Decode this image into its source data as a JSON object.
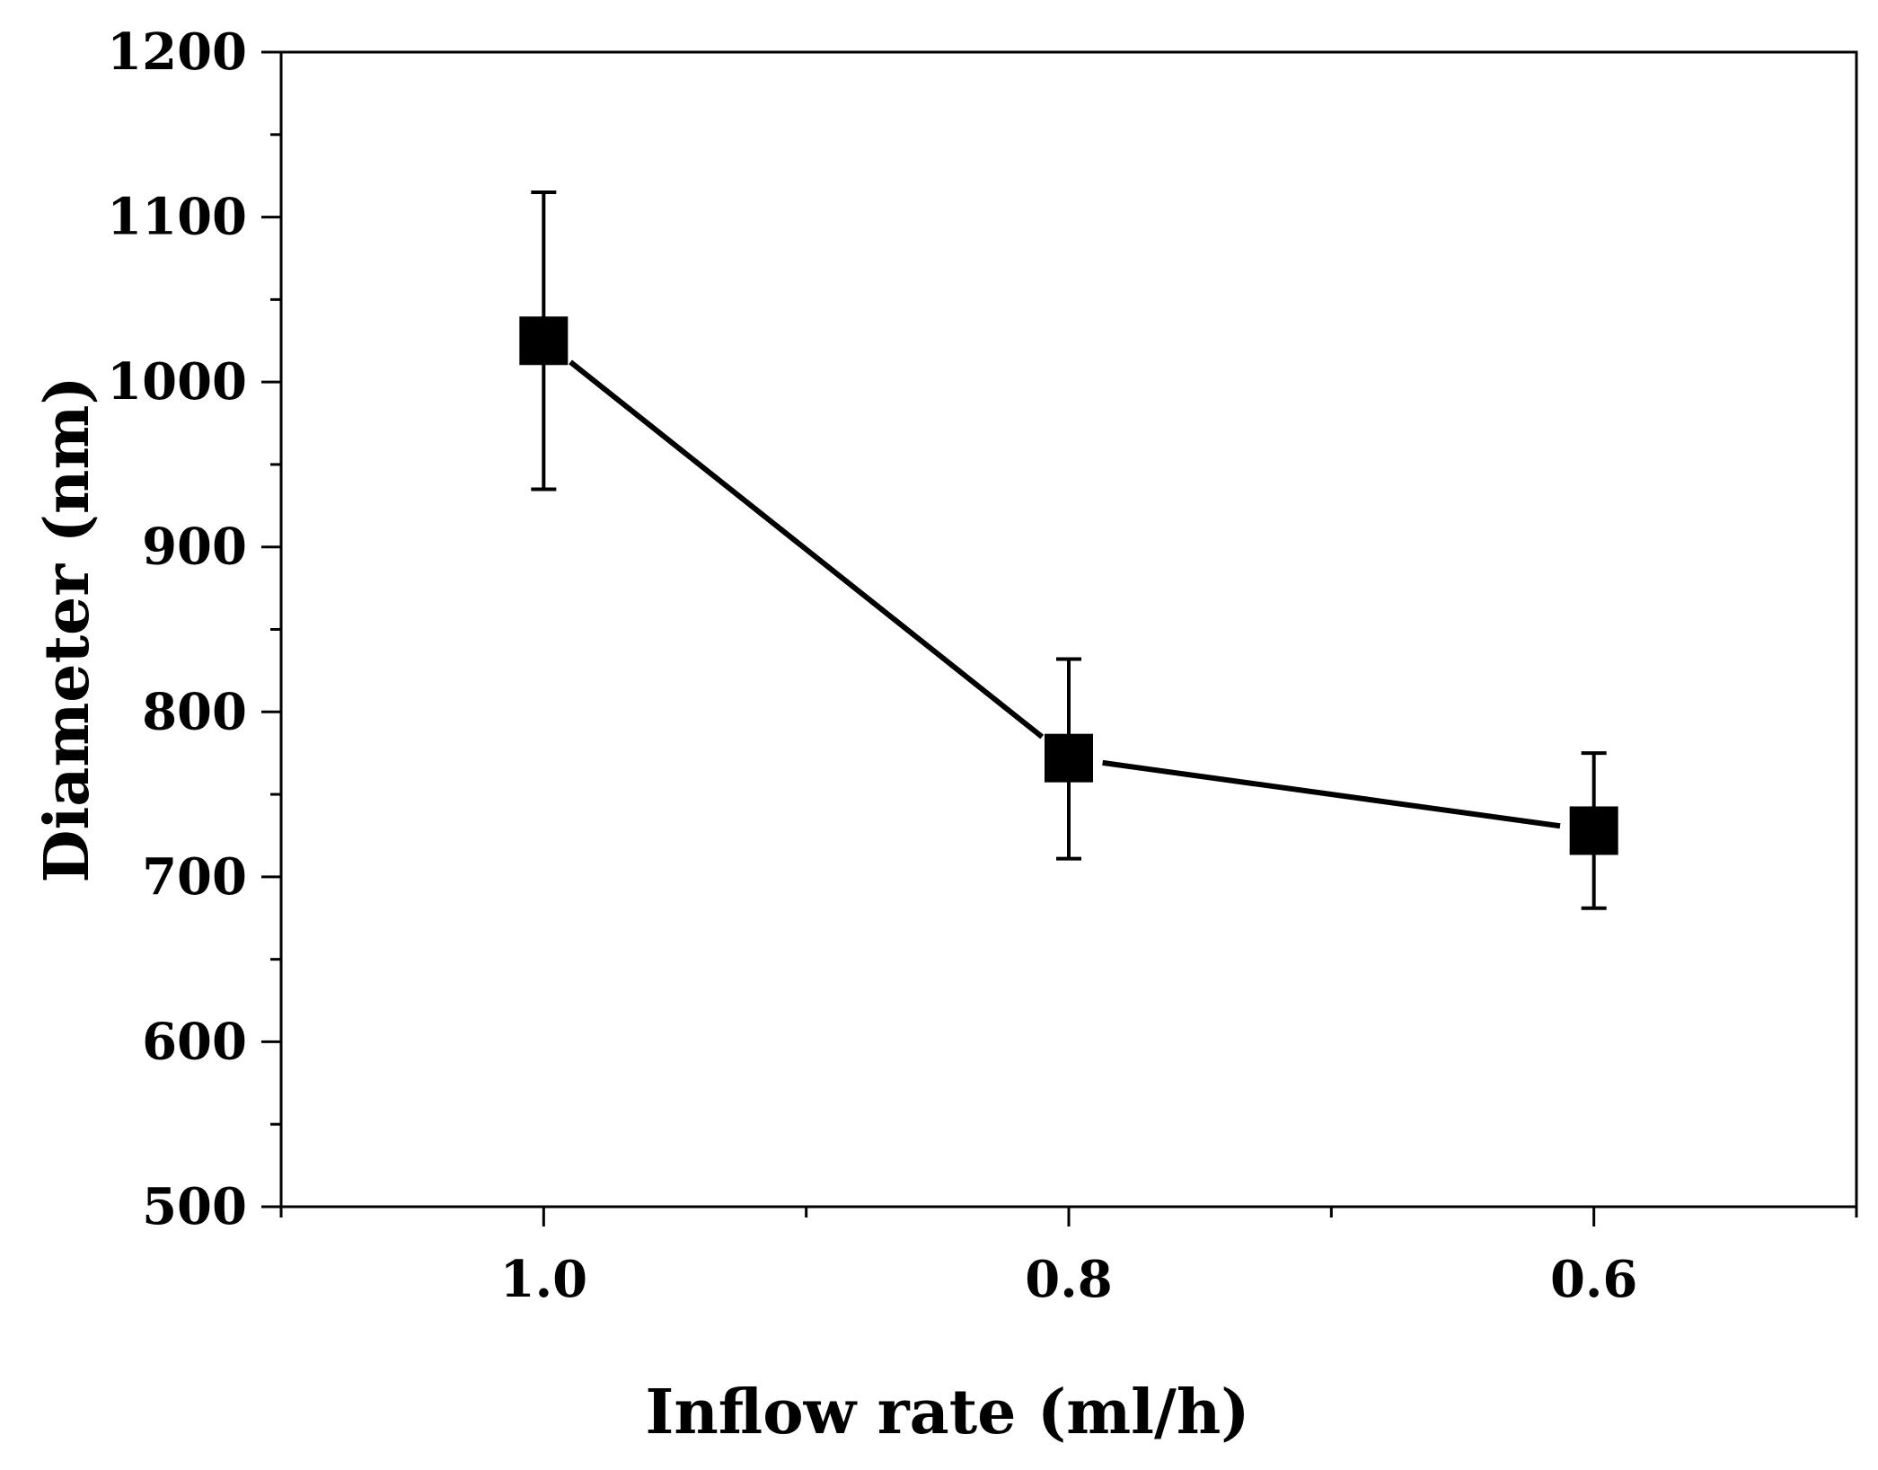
{
  "chart_data": {
    "type": "line",
    "title": "",
    "xlabel": "Inflow rate (ml/h)",
    "ylabel": "Diameter (nm)",
    "categories": [
      "1.0",
      "0.8",
      "0.6"
    ],
    "series": [
      {
        "name": "Diameter",
        "values": [
          1025,
          772,
          728
        ],
        "error_upper": [
          1115,
          832,
          775
        ],
        "error_lower": [
          935,
          711,
          681
        ],
        "marker": "square",
        "color": "#000000"
      }
    ],
    "ylim": [
      500,
      1200
    ],
    "yticks": [
      500,
      600,
      700,
      800,
      900,
      1000,
      1100,
      1200
    ],
    "ytick_labels": [
      "500",
      "600",
      "700",
      "800",
      "900",
      "1000",
      "1100",
      "1200"
    ],
    "xlim": [
      1.1,
      0.5
    ],
    "xticks": [
      1.0,
      0.8,
      0.6
    ],
    "grid": false,
    "legend": "none"
  }
}
